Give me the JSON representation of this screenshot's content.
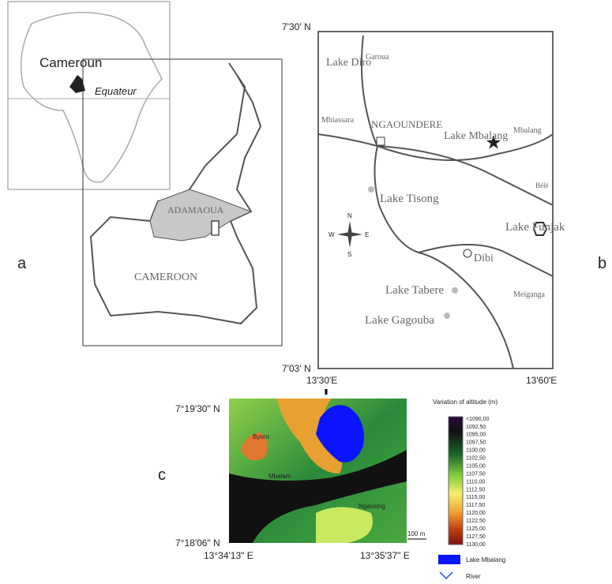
{
  "panel_labels": [
    "a",
    "b",
    "c"
  ],
  "map_a": {
    "inset_labels": [
      "Cameroun",
      "Equateur"
    ],
    "region": "ADAMAOUA",
    "country": "CAMEROON"
  },
  "map_b": {
    "coords": [
      "7'30' N",
      "7'03' N",
      "13'30'E",
      "13'60'E"
    ],
    "places": [
      "Lake Diro",
      "Garoua",
      "Mbiassara",
      "NGAOUNDERE",
      "Lake Mbalang",
      "Mbalang",
      "Bélé",
      "Lake Tisong",
      "Lake Funjak",
      "Dibi",
      "Lake Tabere",
      "Meiganga",
      "Lake Gagouba"
    ],
    "compass": [
      "N",
      "S",
      "W",
      "E"
    ]
  },
  "map_c": {
    "coords": [
      "7°19'30\" N",
      "7°18'06\" N",
      "13°34'13\" E",
      "13°35'37\" E"
    ],
    "places": [
      "Byoro",
      "Mbalam",
      "Ngaosing"
    ],
    "scale": "100 m",
    "legend": {
      "title": "Variation of altitude (m)",
      "levels": [
        "<1090,00",
        "1092,50",
        "1095,00",
        "1097,50",
        "1100,00",
        "1102,50",
        "1105,00",
        "1107,50",
        "1110,00",
        "1112,50",
        "1115,00",
        "1117,50",
        "1120,00",
        "1122,50",
        "1125,00",
        "1127,50",
        "1130,00"
      ],
      "lake": "Lake Mbalang",
      "river": "River"
    }
  }
}
